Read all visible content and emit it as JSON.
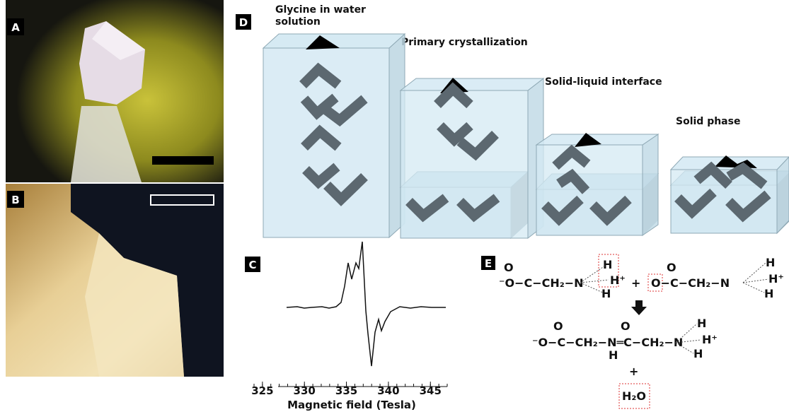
{
  "panels": {
    "a": {
      "label": "A"
    },
    "b": {
      "label": "B"
    },
    "c": {
      "label": "C",
      "xlim": [
        324,
        347
      ],
      "xticks": [
        325,
        330,
        335,
        340,
        345
      ],
      "xlabel": "Magnetic field (Tesla)"
    },
    "d": {
      "label": "D",
      "stages": [
        "Glycine in water solution",
        "Primary crystallization",
        "Solid-liquid interface",
        "Solid phase"
      ]
    },
    "e": {
      "label": "E",
      "reactant_1": {
        "backbone": "⁻O−C−CH₂−N",
        "carbonyl_o": "O",
        "hydrogens": [
          "H",
          "H⁺",
          "H"
        ]
      },
      "plus": "+",
      "reactant_2": {
        "backbone": "O−C−CH₂−N",
        "carbonyl_o": "O",
        "hydrogens": [
          "H",
          "H⁺",
          "H"
        ]
      },
      "product": {
        "backbone": "⁻O−C−CH₂−N═C−CH₂−N",
        "carbonyl_o": [
          "O",
          "O"
        ],
        "hydrogens": [
          "H",
          "H",
          "H⁺",
          "H"
        ]
      },
      "plus_2": "+",
      "water": "H₂O"
    }
  }
}
